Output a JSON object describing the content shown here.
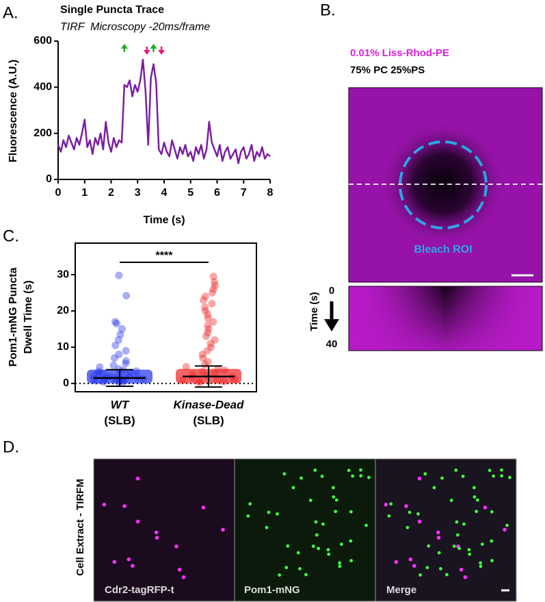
{
  "panel_labels": [
    "A.",
    "B.",
    "C.",
    "D."
  ],
  "chart_data": [
    {
      "type": "line",
      "title": "Single Puncta Trace",
      "subtitle": "TIRF  Microscopy -20ms/frame",
      "xlabel": "Time (s)",
      "ylabel": "Fluorescence (A.U.)",
      "color": "#7a1fa2",
      "x": [
        0,
        0.1,
        0.2,
        0.3,
        0.4,
        0.5,
        0.6,
        0.7,
        0.8,
        0.9,
        1,
        1.1,
        1.2,
        1.3,
        1.4,
        1.5,
        1.6,
        1.7,
        1.8,
        1.9,
        2,
        2.1,
        2.2,
        2.3,
        2.4,
        2.5,
        2.6,
        2.7,
        2.8,
        2.9,
        3,
        3.1,
        3.2,
        3.3,
        3.4,
        3.5,
        3.6,
        3.7,
        3.8,
        3.9,
        4,
        4.1,
        4.2,
        4.3,
        4.4,
        4.5,
        4.6,
        4.7,
        4.8,
        4.9,
        5,
        5.1,
        5.2,
        5.3,
        5.4,
        5.5,
        5.6,
        5.7,
        5.8,
        5.9,
        6,
        6.1,
        6.2,
        6.3,
        6.4,
        6.5,
        6.6,
        6.7,
        6.8,
        6.9,
        7,
        7.1,
        7.2,
        7.3,
        7.4,
        7.5,
        7.6,
        7.7,
        7.8,
        7.9,
        8
      ],
      "values": [
        150,
        120,
        170,
        140,
        190,
        160,
        130,
        180,
        150,
        200,
        260,
        140,
        170,
        110,
        180,
        150,
        200,
        130,
        250,
        160,
        120,
        180,
        140,
        170,
        160,
        410,
        400,
        430,
        360,
        410,
        380,
        430,
        520,
        380,
        150,
        440,
        500,
        420,
        130,
        110,
        160,
        120,
        100,
        170,
        130,
        90,
        140,
        110,
        150,
        100,
        120,
        80,
        140,
        110,
        150,
        90,
        130,
        250,
        160,
        130,
        100,
        150,
        80,
        120,
        140,
        90,
        110,
        130,
        70,
        120,
        140,
        90,
        110,
        150,
        80,
        120,
        100,
        140,
        90,
        110,
        100
      ],
      "xlim": [
        0,
        8
      ],
      "ylim": [
        0,
        600
      ],
      "xticks": [
        0,
        1,
        2,
        3,
        4,
        5,
        6,
        7,
        8
      ],
      "yticks": [
        0,
        200,
        400,
        600
      ],
      "events": [
        {
          "x": 2.5,
          "direction": "up",
          "color": "#1db31d"
        },
        {
          "x": 3.35,
          "direction": "down",
          "color": "#e8187a"
        },
        {
          "x": 3.6,
          "direction": "up",
          "color": "#1db31d"
        },
        {
          "x": 3.9,
          "direction": "down",
          "color": "#e8187a"
        }
      ]
    },
    {
      "type": "strip",
      "ylabel": [
        "Pom1-mNG Puncta",
        "Dwell Time (s)"
      ],
      "categories": [
        [
          "WT",
          "(SLB)"
        ],
        [
          "Kinase-Dead",
          "(SLB)"
        ]
      ],
      "series": [
        {
          "color": "#2233e8",
          "values": [
            0.3,
            0.5,
            0.7,
            0.9,
            1.0,
            1.1,
            1.2,
            1.3,
            1.4,
            1.5,
            1.6,
            1.8,
            2.0,
            2.2,
            2.5,
            2.8,
            3.0,
            3.3,
            3.6,
            4.0,
            4.5,
            5.0,
            5.5,
            6.2,
            7.0,
            8.0,
            9.0,
            10.5,
            12.0,
            13.5,
            15.0,
            16.5,
            17.0,
            24.2,
            29.8,
            0.4,
            0.8,
            1.9,
            2.6,
            3.4
          ],
          "mean": 1.5,
          "error": 2.3
        },
        {
          "color": "#f02424",
          "values": [
            0.3,
            0.6,
            0.9,
            1.2,
            1.5,
            1.8,
            2.1,
            2.4,
            2.8,
            3.2,
            3.6,
            4.0,
            4.6,
            5.2,
            6.0,
            7.0,
            8.0,
            9.0,
            10.0,
            11.0,
            12.0,
            13.0,
            14.0,
            15.0,
            16.0,
            17.0,
            18.0,
            19.0,
            20.0,
            21.0,
            22.0,
            23.0,
            24.0,
            25.0,
            26.0,
            27.0,
            28.0,
            29.5,
            0.5,
            1.0
          ],
          "mean": 1.9,
          "error": 2.9
        }
      ],
      "ylim": [
        -2.3,
        38.7
      ],
      "yticks": [
        0,
        10,
        20,
        30
      ],
      "zero_line": true,
      "significance": "****"
    }
  ],
  "panel_b": {
    "label_line1": "0.01% Liss-Rhod-PE",
    "label_line2": "75% PC 25%PS",
    "roi_label": "Bleach ROI",
    "time_axis": "Time (s)",
    "time_start": "0",
    "time_end": "40"
  },
  "panel_d": {
    "side_label": "Cell Extract - TIRFM",
    "channels": [
      "Cdr2-tagRFP-t",
      "Pom1-mNG",
      "Merge"
    ]
  }
}
